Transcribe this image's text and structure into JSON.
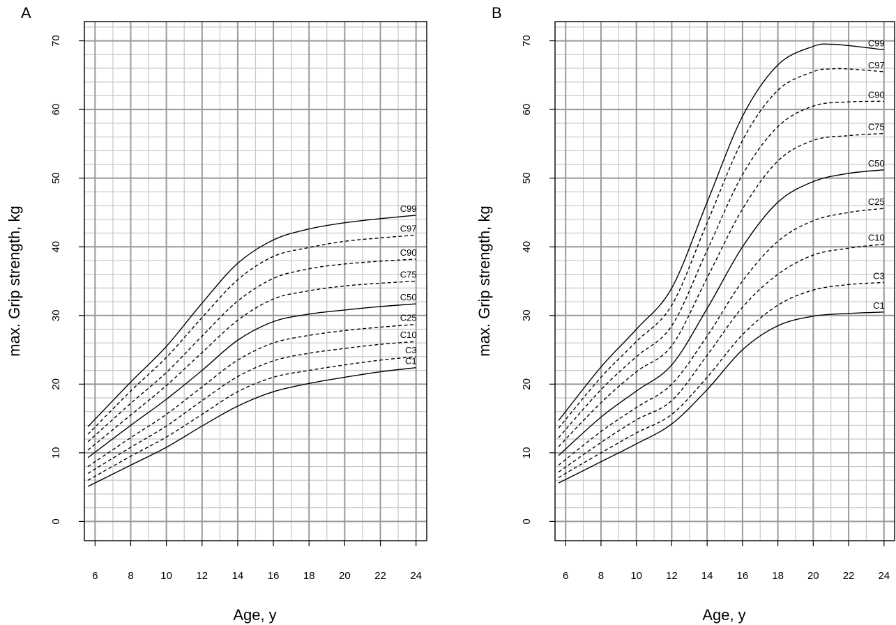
{
  "chart_data": [
    {
      "panel": "A",
      "type": "line",
      "xlabel": "Age, y",
      "ylabel": "max. Grip strength, kg",
      "xlim": [
        5.4,
        24.6
      ],
      "ylim": [
        -2.8,
        72.8
      ],
      "xticks": [
        "6",
        "8",
        "10",
        "12",
        "14",
        "16",
        "18",
        "20",
        "22",
        "24"
      ],
      "yticks": [
        "0",
        "10",
        "20",
        "30",
        "40",
        "50",
        "60",
        "70"
      ],
      "grid": true,
      "series": [
        {
          "name": "C99",
          "style": "solid",
          "x": [
            5.6,
            8,
            10,
            12,
            14,
            16,
            18,
            20,
            22,
            24
          ],
          "y": [
            13.8,
            20.3,
            25.5,
            31.8,
            37.6,
            41.0,
            42.6,
            43.5,
            44.1,
            44.6
          ]
        },
        {
          "name": "C97",
          "style": "dashed",
          "x": [
            5.6,
            8,
            10,
            12,
            14,
            16,
            18,
            20,
            22,
            24
          ],
          "y": [
            12.7,
            19.0,
            23.9,
            29.7,
            35.2,
            38.6,
            39.9,
            40.8,
            41.3,
            41.7
          ]
        },
        {
          "name": "C90",
          "style": "dashed",
          "x": [
            5.6,
            8,
            10,
            12,
            14,
            16,
            18,
            20,
            22,
            24
          ],
          "y": [
            11.6,
            17.2,
            21.7,
            27.0,
            32.1,
            35.4,
            36.8,
            37.5,
            37.9,
            38.2
          ]
        },
        {
          "name": "C75",
          "style": "dashed",
          "x": [
            5.6,
            8,
            10,
            12,
            14,
            16,
            18,
            20,
            22,
            24
          ],
          "y": [
            10.4,
            15.5,
            19.8,
            24.6,
            29.3,
            32.4,
            33.6,
            34.3,
            34.7,
            35.0
          ]
        },
        {
          "name": "C50",
          "style": "solid",
          "x": [
            5.6,
            8,
            10,
            12,
            14,
            16,
            18,
            20,
            22,
            24
          ],
          "y": [
            9.3,
            14.0,
            17.8,
            22.0,
            26.4,
            29.1,
            30.2,
            30.8,
            31.3,
            31.7
          ]
        },
        {
          "name": "C25",
          "style": "dashed",
          "x": [
            5.6,
            8,
            10,
            12,
            14,
            16,
            18,
            20,
            22,
            24
          ],
          "y": [
            8.0,
            12.2,
            15.6,
            19.6,
            23.5,
            26.0,
            27.1,
            27.8,
            28.3,
            28.7
          ]
        },
        {
          "name": "C10",
          "style": "dashed",
          "x": [
            5.6,
            8,
            10,
            12,
            14,
            16,
            18,
            20,
            22,
            24
          ],
          "y": [
            7.0,
            10.8,
            13.9,
            17.6,
            21.1,
            23.4,
            24.5,
            25.2,
            25.8,
            26.2
          ]
        },
        {
          "name": "C3",
          "style": "dashed",
          "x": [
            5.6,
            8,
            10,
            12,
            14,
            16,
            18,
            20,
            22,
            24
          ],
          "y": [
            6.0,
            9.5,
            12.3,
            15.6,
            18.9,
            21.0,
            22.0,
            22.8,
            23.5,
            24.0
          ]
        },
        {
          "name": "C1",
          "style": "solid",
          "x": [
            5.6,
            8,
            10,
            12,
            14,
            16,
            18,
            20,
            22,
            24
          ],
          "y": [
            5.1,
            8.2,
            10.8,
            13.9,
            16.8,
            18.9,
            20.1,
            21.0,
            21.8,
            22.4
          ]
        }
      ]
    },
    {
      "panel": "B",
      "type": "line",
      "xlabel": "Age, y",
      "ylabel": "max. Grip strength, kg",
      "xlim": [
        5.4,
        24.6
      ],
      "ylim": [
        -2.8,
        72.8
      ],
      "xticks": [
        "6",
        "8",
        "10",
        "12",
        "14",
        "16",
        "18",
        "20",
        "22",
        "24"
      ],
      "yticks": [
        "0",
        "10",
        "20",
        "30",
        "40",
        "50",
        "60",
        "70"
      ],
      "grid": true,
      "series": [
        {
          "name": "C99",
          "style": "solid",
          "x": [
            5.6,
            8,
            10,
            12,
            14,
            16,
            18,
            20,
            21,
            22,
            24
          ],
          "y": [
            14.7,
            22.5,
            28.0,
            34.0,
            46.5,
            59.0,
            66.5,
            69.2,
            69.5,
            69.3,
            68.7
          ]
        },
        {
          "name": "C97",
          "style": "dashed",
          "x": [
            5.6,
            8,
            10,
            12,
            14,
            16,
            18,
            20,
            21,
            22,
            24
          ],
          "y": [
            13.6,
            21.0,
            26.2,
            31.5,
            43.5,
            55.5,
            62.8,
            65.5,
            65.9,
            65.9,
            65.5
          ]
        },
        {
          "name": "C90",
          "style": "dashed",
          "x": [
            5.6,
            8,
            10,
            12,
            14,
            16,
            18,
            20,
            22,
            24
          ],
          "y": [
            12.2,
            19.2,
            24.0,
            28.5,
            39.5,
            50.5,
            57.5,
            60.5,
            61.1,
            61.2
          ]
        },
        {
          "name": "C75",
          "style": "dashed",
          "x": [
            5.6,
            8,
            10,
            12,
            14,
            16,
            18,
            20,
            22,
            24
          ],
          "y": [
            10.9,
            17.3,
            21.8,
            25.6,
            35.5,
            45.5,
            52.5,
            55.5,
            56.2,
            56.5
          ]
        },
        {
          "name": "C50",
          "style": "solid",
          "x": [
            5.6,
            8,
            10,
            12,
            14,
            16,
            18,
            20,
            22,
            24
          ],
          "y": [
            9.6,
            15.2,
            19.0,
            22.8,
            31.0,
            40.0,
            46.5,
            49.5,
            50.7,
            51.2
          ]
        },
        {
          "name": "C25",
          "style": "dashed",
          "x": [
            5.6,
            8,
            10,
            12,
            14,
            16,
            18,
            20,
            22,
            24
          ],
          "y": [
            8.2,
            13.1,
            16.6,
            20.0,
            27.0,
            35.0,
            40.8,
            43.8,
            45.0,
            45.6
          ]
        },
        {
          "name": "C10",
          "style": "dashed",
          "x": [
            5.6,
            8,
            10,
            12,
            14,
            16,
            18,
            20,
            22,
            24
          ],
          "y": [
            7.2,
            11.5,
            14.8,
            17.6,
            24.2,
            31.2,
            36.0,
            38.8,
            39.8,
            40.4
          ]
        },
        {
          "name": "C3",
          "style": "dashed",
          "x": [
            5.6,
            8,
            10,
            12,
            14,
            16,
            18,
            20,
            22,
            24
          ],
          "y": [
            6.4,
            10.0,
            12.9,
            15.6,
            21.0,
            27.2,
            31.5,
            33.7,
            34.5,
            34.8
          ]
        },
        {
          "name": "C1",
          "style": "solid",
          "x": [
            5.6,
            8,
            10,
            12,
            14,
            16,
            18,
            20,
            22,
            24
          ],
          "y": [
            5.6,
            8.7,
            11.3,
            14.2,
            19.2,
            25.0,
            28.5,
            29.9,
            30.3,
            30.5
          ]
        }
      ]
    }
  ],
  "styles": {
    "grid_major_color": "#999999",
    "grid_minor_color": "#c8c8c8",
    "line_color": "#000000"
  }
}
